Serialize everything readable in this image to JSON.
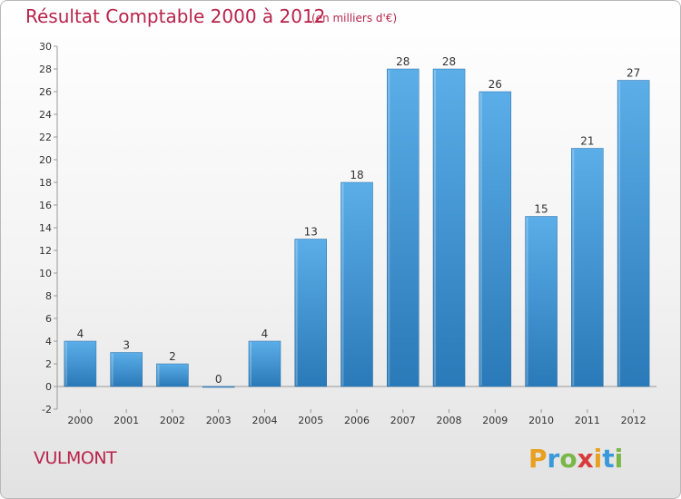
{
  "header": {
    "title": "Résultat Comptable 2000 à 2012",
    "subtitle": "(en milliers d'€)"
  },
  "footer": {
    "commune": "VULMONT",
    "logo_letters": [
      "P",
      "r",
      "o",
      "x",
      "i",
      "t",
      "i"
    ],
    "logo_colors": [
      "#e8a020",
      "#3a9ad9",
      "#7ab648",
      "#d93a3a",
      "#e8a020",
      "#3a9ad9",
      "#7ab648"
    ]
  },
  "chart_data": {
    "type": "bar",
    "title": "Résultat Comptable 2000 à 2012",
    "subtitle": "(en milliers d'€)",
    "xlabel": "",
    "ylabel": "",
    "categories": [
      "2000",
      "2001",
      "2002",
      "2003",
      "2004",
      "2005",
      "2006",
      "2007",
      "2008",
      "2009",
      "2010",
      "2011",
      "2012"
    ],
    "values": [
      4,
      3,
      2,
      0,
      4,
      13,
      18,
      28,
      28,
      26,
      15,
      21,
      27
    ],
    "data_labels": [
      "4",
      "3",
      "2",
      "0",
      "4",
      "13",
      "18",
      "28",
      "28",
      "26",
      "15",
      "21",
      "27"
    ],
    "ylim": [
      -2,
      30
    ],
    "yticks": [
      -2,
      0,
      2,
      4,
      6,
      8,
      10,
      12,
      14,
      16,
      18,
      20,
      22,
      24,
      26,
      28,
      30
    ],
    "grid": false,
    "bar_color_light": "#5baee8",
    "bar_color_dark": "#2a79b8",
    "axis_color": "#999999"
  }
}
